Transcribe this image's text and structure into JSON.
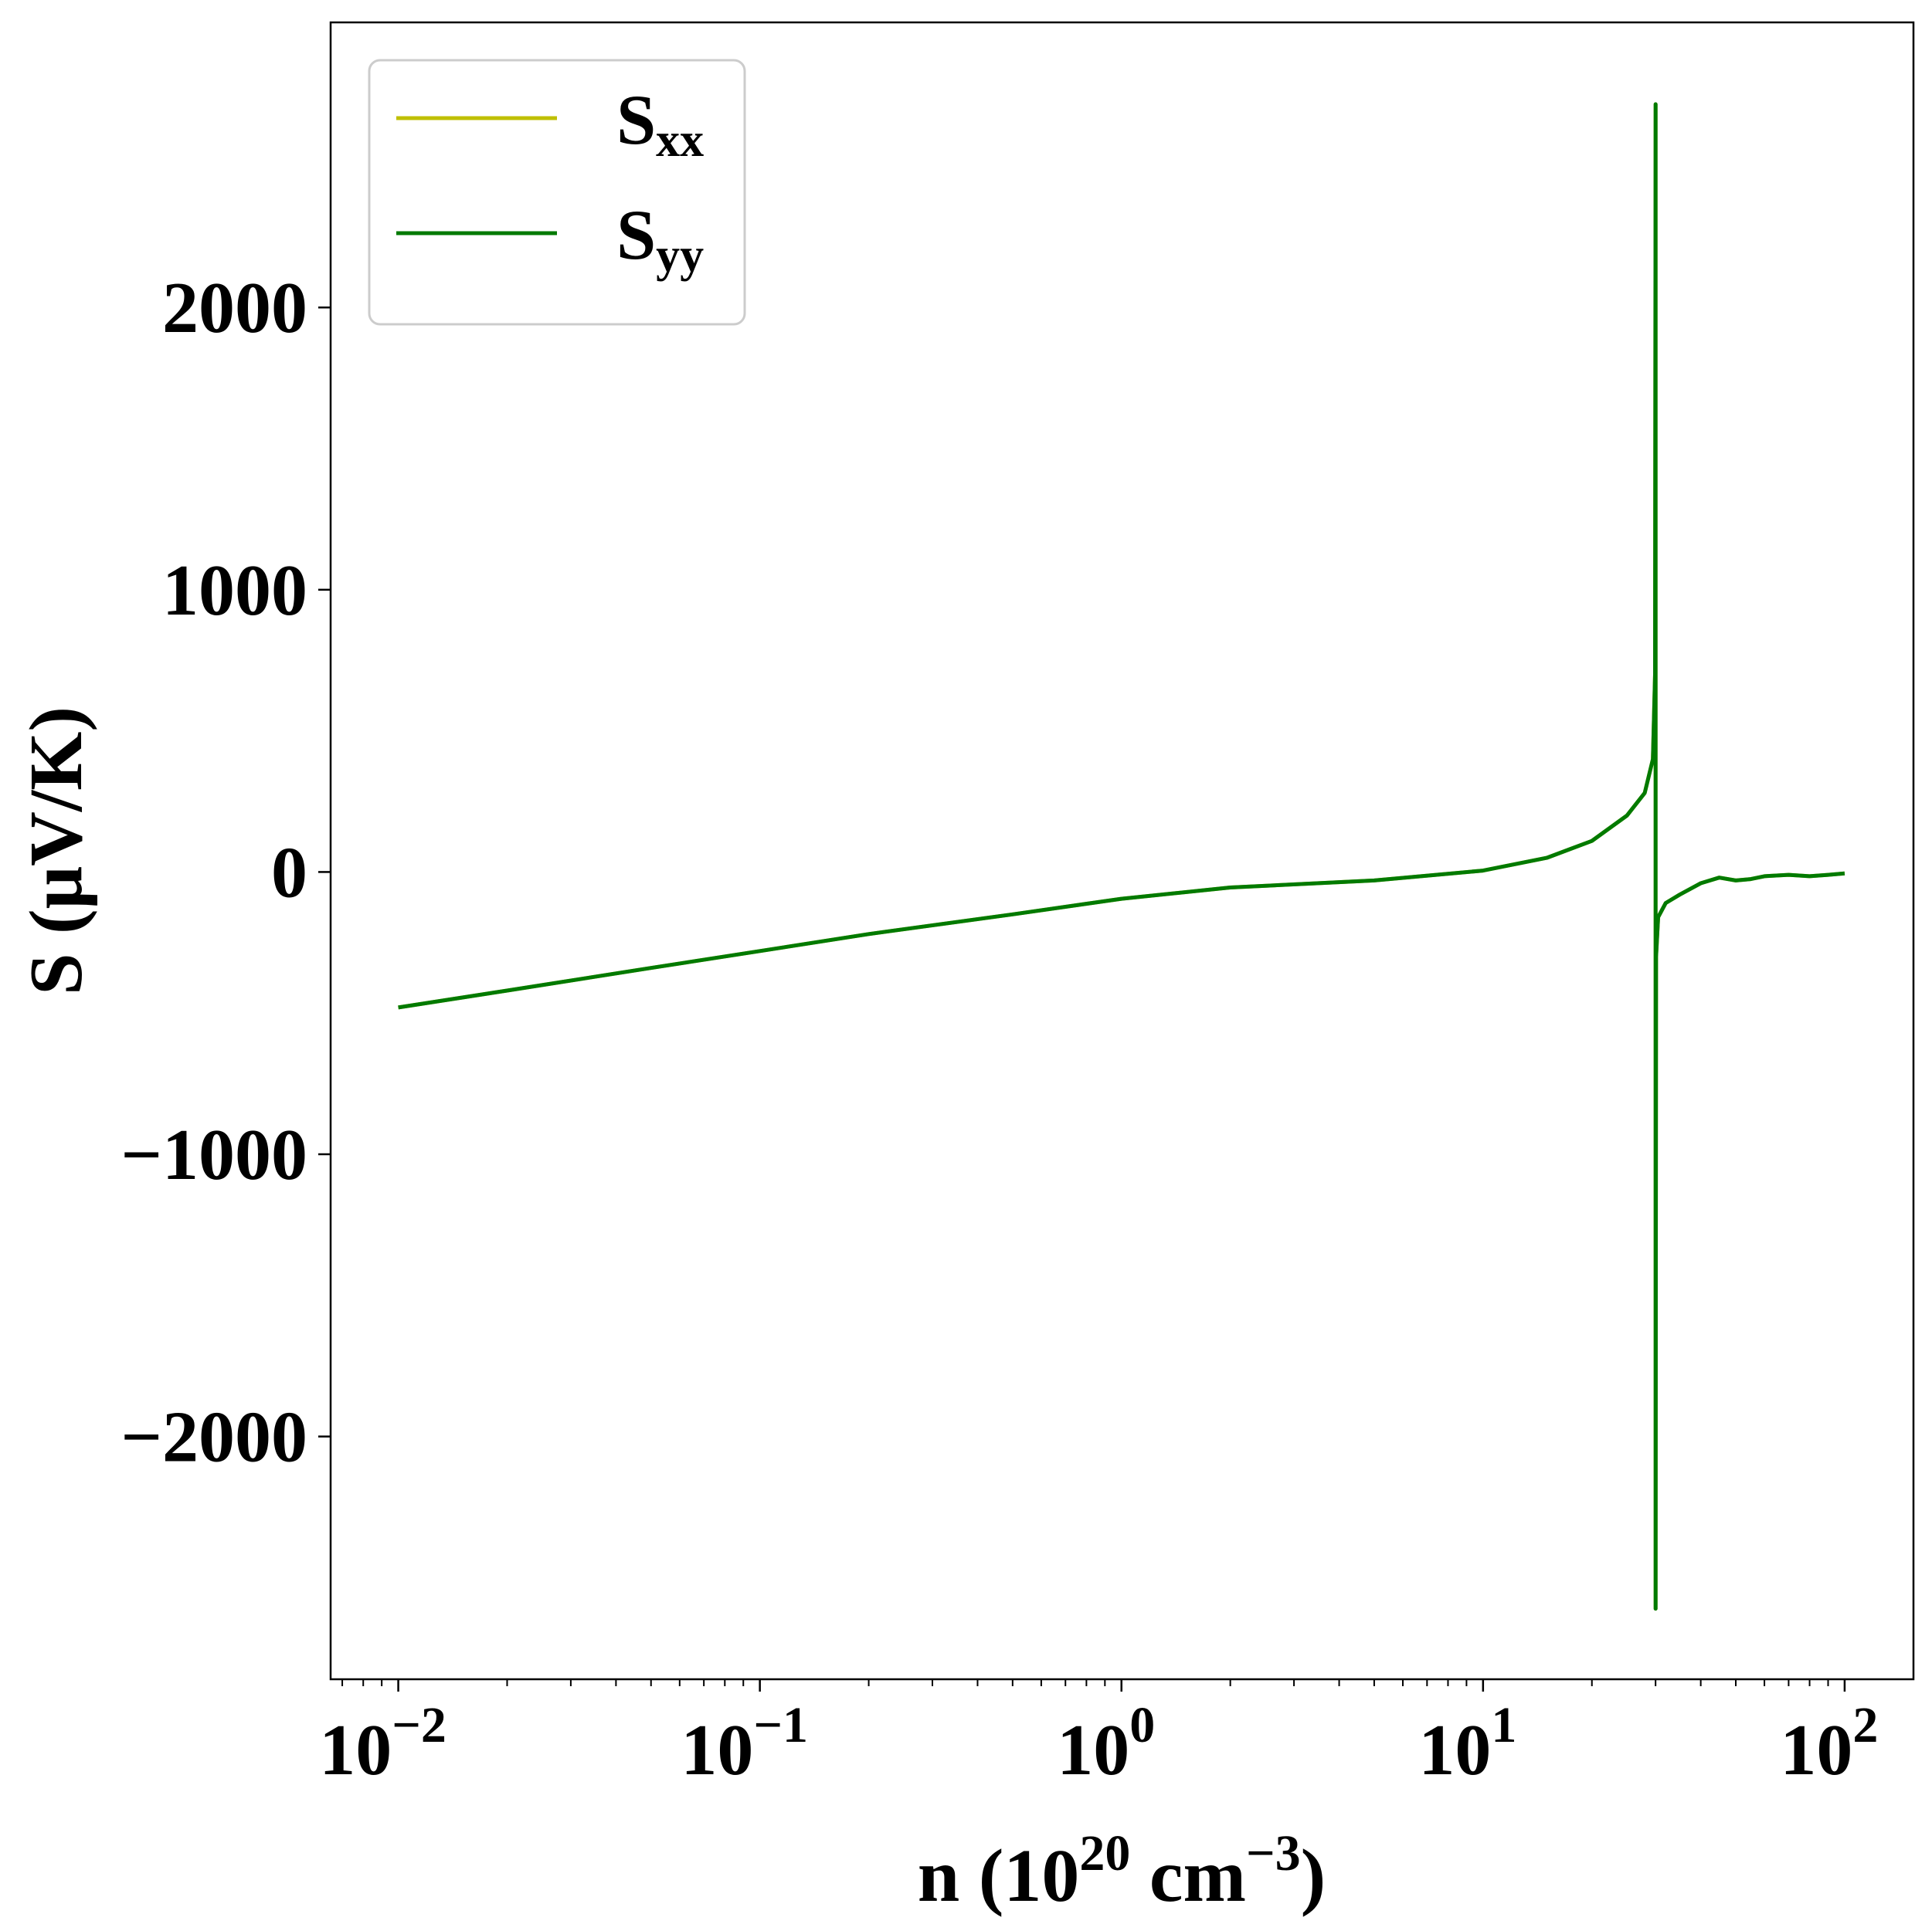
{
  "chart_data": {
    "type": "line",
    "xscale": "log",
    "xlim": [
      0.0065,
      155
    ],
    "ylim": [
      -2860,
      3010
    ],
    "xticks": [
      {
        "value": 0.01,
        "base": "10",
        "exp": "−2"
      },
      {
        "value": 0.1,
        "base": "10",
        "exp": "−1"
      },
      {
        "value": 1,
        "base": "10",
        "exp": "0"
      },
      {
        "value": 10,
        "base": "10",
        "exp": "1"
      },
      {
        "value": 100,
        "base": "10",
        "exp": "2"
      }
    ],
    "yticks": [
      {
        "value": 2000,
        "label": "2000"
      },
      {
        "value": 1000,
        "label": "1000"
      },
      {
        "value": 0,
        "label": "0"
      },
      {
        "value": -1000,
        "label": "−1000"
      },
      {
        "value": -2000,
        "label": "−2000"
      }
    ],
    "xlabel": {
      "main": "n (10",
      "sup1": "20",
      "mid": " cm",
      "sup2": "−3",
      "end": ")"
    },
    "ylabel": "S (μV/K)",
    "legend_position": "upper-left",
    "grid": false,
    "series": [
      {
        "name": {
          "base": "S",
          "sub": "xx"
        },
        "color": "#bfbf00",
        "x": [
          0.01,
          0.02,
          0.05,
          0.1,
          0.2,
          0.5,
          1,
          2,
          5,
          10,
          15,
          20,
          25,
          28,
          29.5,
          29.9,
          30.0,
          30.0,
          30.1,
          30.5,
          32,
          35,
          40,
          45,
          50,
          55,
          60,
          70,
          80,
          90,
          100
        ],
        "y": [
          -480,
          -420,
          -340,
          -280,
          -220,
          -150,
          -95,
          -55,
          -30,
          5,
          50,
          110,
          200,
          280,
          400,
          700,
          2720,
          -2610,
          -300,
          -160,
          -110,
          -80,
          -40,
          -20,
          -30,
          -25,
          -15,
          -10,
          -15,
          -10,
          -5
        ]
      },
      {
        "name": {
          "base": "S",
          "sub": "yy"
        },
        "color": "#007a00",
        "x": [
          0.01,
          0.02,
          0.05,
          0.1,
          0.2,
          0.5,
          1,
          2,
          5,
          10,
          15,
          20,
          25,
          28,
          29.5,
          29.9,
          30.0,
          30.0,
          30.1,
          30.5,
          32,
          35,
          40,
          45,
          50,
          55,
          60,
          70,
          80,
          90,
          100
        ],
        "y": [
          -480,
          -420,
          -340,
          -280,
          -220,
          -150,
          -95,
          -55,
          -30,
          5,
          50,
          110,
          200,
          280,
          400,
          700,
          2720,
          -2610,
          -300,
          -160,
          -110,
          -80,
          -40,
          -20,
          -30,
          -25,
          -15,
          -10,
          -15,
          -10,
          -5
        ]
      }
    ]
  }
}
